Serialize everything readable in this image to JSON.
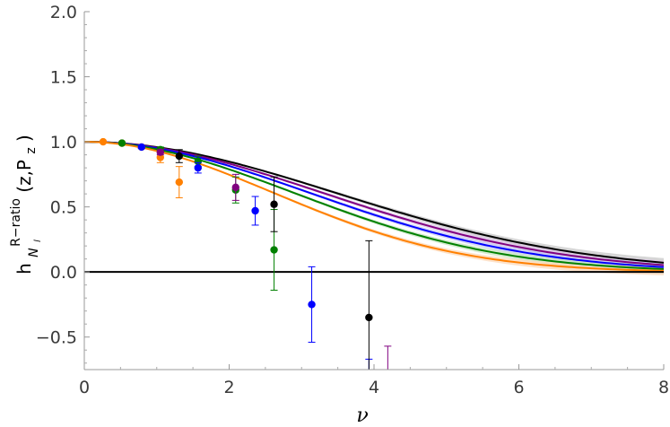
{
  "chart_data": {
    "type": "scatter",
    "xlabel": "ν",
    "ylabel": {
      "base": "h",
      "superscript": "R−ratio",
      "subscript_main": "N",
      "subscript_sub": "l",
      "args": "(z,P",
      "args_sub": "z",
      "args_close": ")"
    },
    "xlim": [
      0,
      8
    ],
    "ylim": [
      -0.75,
      2.0
    ],
    "x_ticks": [
      0,
      2,
      4,
      6,
      8
    ],
    "x_tick_labels": [
      "0",
      "2",
      "4",
      "6",
      "8"
    ],
    "y_ticks": [
      -0.5,
      0.0,
      0.5,
      1.0,
      1.5,
      2.0
    ],
    "y_tick_labels": [
      "−0.5",
      "0.0",
      "0.5",
      "1.0",
      "1.5",
      "2.0"
    ],
    "reference_line": {
      "y": 0.0
    },
    "curves": [
      {
        "color": "#000000",
        "band": "#c8c8c8",
        "sigma": 3.48
      },
      {
        "color": "#800080",
        "band": "#dcc4e4",
        "sigma": 3.3
      },
      {
        "color": "#0000ff",
        "band": "#c4c8f4",
        "sigma": 3.12
      },
      {
        "color": "#008000",
        "band": "#c8e4c0",
        "sigma": 2.9
      },
      {
        "color": "#ff8000",
        "band": "#fcd8b8",
        "sigma": 2.62
      }
    ],
    "series": [
      {
        "color": "#ff8000",
        "points": [
          {
            "x": 0.26,
            "y": 1.0,
            "err": 0.0
          },
          {
            "x": 0.52,
            "y": 0.99,
            "err": 0.0
          },
          {
            "x": 0.79,
            "y": 0.96,
            "err": 0.01
          },
          {
            "x": 1.05,
            "y": 0.88,
            "err": 0.04
          },
          {
            "x": 1.31,
            "y": 0.69,
            "err": 0.12
          }
        ]
      },
      {
        "color": "#008000",
        "points": [
          {
            "x": 0.52,
            "y": 0.99,
            "err": 0.0
          },
          {
            "x": 1.05,
            "y": 0.94,
            "err": 0.02
          },
          {
            "x": 1.57,
            "y": 0.85,
            "err": 0.04
          },
          {
            "x": 2.09,
            "y": 0.63,
            "err": 0.1
          },
          {
            "x": 2.62,
            "y": 0.17,
            "err": 0.31
          }
        ]
      },
      {
        "color": "#0000ff",
        "points": [
          {
            "x": 0.79,
            "y": 0.96,
            "err": 0.01
          },
          {
            "x": 1.57,
            "y": 0.8,
            "err": 0.04
          },
          {
            "x": 2.36,
            "y": 0.47,
            "err": 0.11
          },
          {
            "x": 3.14,
            "y": -0.25,
            "err": 0.29
          },
          {
            "x": 3.93,
            "y": -0.95,
            "err": 0.28
          }
        ]
      },
      {
        "color": "#800080",
        "points": [
          {
            "x": 1.05,
            "y": 0.92,
            "err": 0.02
          },
          {
            "x": 2.09,
            "y": 0.65,
            "err": 0.1
          },
          {
            "x": 4.19,
            "y": -0.85,
            "err": 0.28
          }
        ]
      },
      {
        "color": "#000000",
        "points": [
          {
            "x": 1.31,
            "y": 0.89,
            "err": 0.05
          },
          {
            "x": 2.62,
            "y": 0.52,
            "err": 0.21
          },
          {
            "x": 3.93,
            "y": -0.35,
            "err": 0.59
          }
        ]
      }
    ]
  }
}
